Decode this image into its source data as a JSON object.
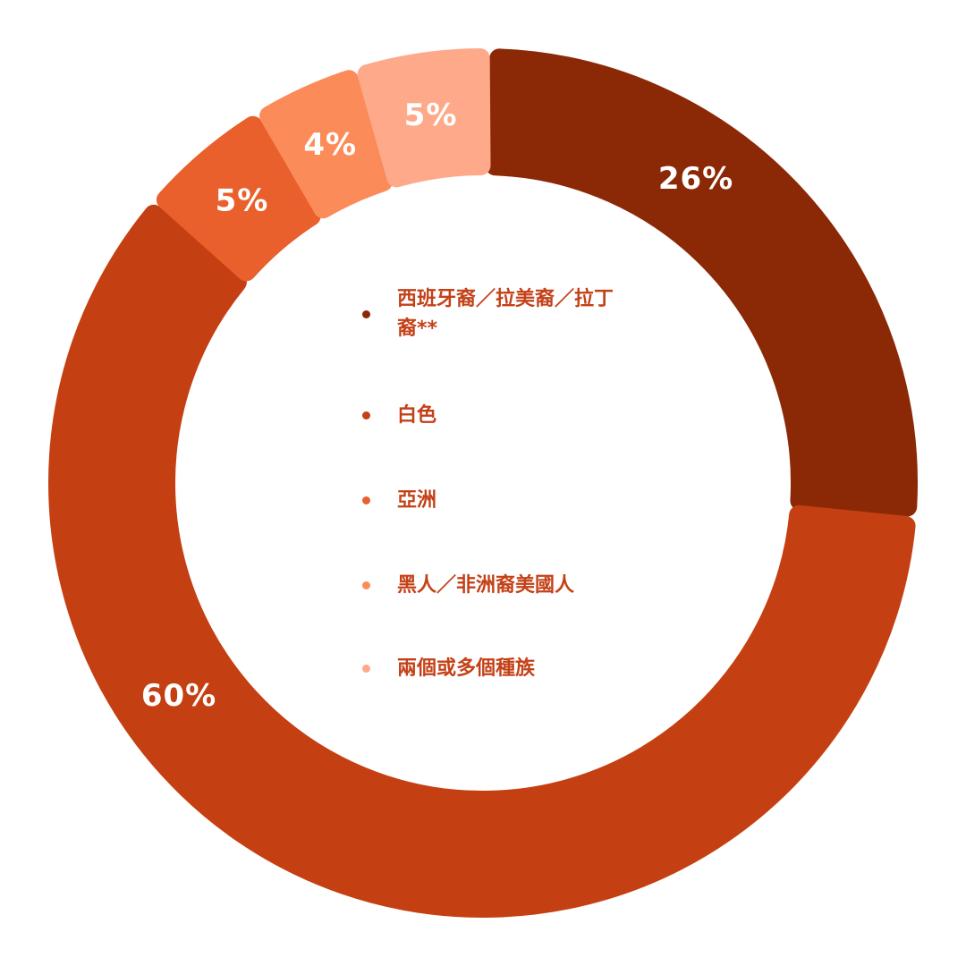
{
  "chart_data": {
    "type": "pie",
    "variant": "donut",
    "title": "",
    "slices": [
      {
        "label": "西班牙裔／拉美裔／拉丁裔**",
        "value": 26,
        "display": "26%",
        "color": "#8b2907"
      },
      {
        "label": "白色",
        "value": 60,
        "display": "60%",
        "color": "#c44012"
      },
      {
        "label": "亞洲",
        "value": 5,
        "display": "5%",
        "color": "#e9602d"
      },
      {
        "label": "黑人／非洲裔美國人",
        "value": 4,
        "display": "4%",
        "color": "#fc8b5a"
      },
      {
        "label": "兩個或多個種族",
        "value": 5,
        "display": "5%",
        "color": "#fda98a"
      }
    ],
    "legend_placement": "center"
  },
  "legend_color_text": "#c44118"
}
